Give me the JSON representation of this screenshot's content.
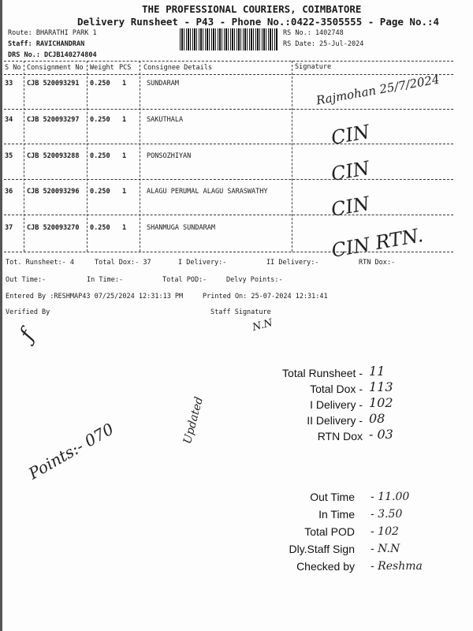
{
  "header": {
    "company": "THE PROFESSIONAL COURIERS, COIMBATORE",
    "subtitle": "Delivery Runsheet - P43 - Phone No.:0422-3505555 - Page No.:4",
    "route": "Route: BHARATHI PARK 1",
    "staff": "Staff: RAVICHANDRAN",
    "drs": "DRS No.: DCJB140274804",
    "rs_no": "RS No.: 1402748",
    "rs_date": "RS Date: 25-Jul-2024"
  },
  "table": {
    "columns": [
      "S No",
      "Consignment No",
      "Weight",
      "PCS",
      "Consignee Details",
      "Signature"
    ],
    "rows": [
      {
        "sno": "33",
        "cons": "CJB 520093291",
        "weight": "0.250",
        "pcs": "1",
        "consignee": "SUNDARAM",
        "sign": "Rajmohan 25/7/2024"
      },
      {
        "sno": "34",
        "cons": "CJB 520093297",
        "weight": "0.250",
        "pcs": "1",
        "consignee": "SAKUTHALA",
        "sign": "CIN"
      },
      {
        "sno": "35",
        "cons": "CJB 520093288",
        "weight": "0.250",
        "pcs": "1",
        "consignee": "PONSOZHIYAN",
        "sign": "CIN"
      },
      {
        "sno": "36",
        "cons": "CJB 520093296",
        "weight": "0.250",
        "pcs": "1",
        "consignee": "ALAGU PERUMAL ALAGU SARASWATHY",
        "sign": "CIN"
      },
      {
        "sno": "37",
        "cons": "CJB 520093270",
        "weight": "0.250",
        "pcs": "1",
        "consignee": "SHANMUGA SUNDARAM",
        "sign": "CIN RTN."
      }
    ]
  },
  "summary": {
    "tot_runsheet": "Tot. Runsheet:- 4",
    "total_dox": "Total Dox:-   37",
    "i_delivery": "I Delivery:-",
    "ii_delivery": "II Delivery:-",
    "rtn_dox": "RTN Dox:-",
    "out_time": "Out Time:-",
    "in_time": "In Time:-",
    "total_pod": "Total POD:-",
    "delvy_points": "Delvy Points:-",
    "entered_by": "Entered By :RESHMAP43 07/25/2024 12:31:13 PM",
    "printed_on": "Printed On: 25-07-2024 12:31:41",
    "verified_by": "Verified By",
    "staff_signature": "Staff Signature",
    "staff_sig_hand": "N.N"
  },
  "stamp1": [
    {
      "label": "Total Runsheet -",
      "value": "11"
    },
    {
      "label": "Total Dox -",
      "value": "113"
    },
    {
      "label": "I Delivery -",
      "value": "102"
    },
    {
      "label": "II Delivery -",
      "value": "08"
    },
    {
      "label": "RTN Dox",
      "value": "- 03"
    }
  ],
  "stamp2": [
    {
      "label": "Out Time",
      "value": "- 11.00"
    },
    {
      "label": "In Time",
      "value": "- 3.50"
    },
    {
      "label": "Total POD",
      "value": "- 102"
    },
    {
      "label": "Dly.Staff Sign",
      "value": "- N.N"
    },
    {
      "label": "Checked by",
      "value": "- Reshma"
    }
  ],
  "handnotes": {
    "points": "Points:- 070",
    "updated": "Updated"
  }
}
